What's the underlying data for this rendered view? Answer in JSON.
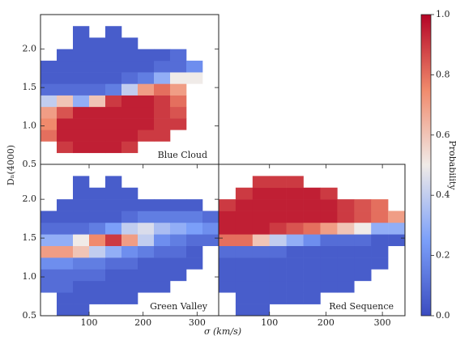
{
  "chart_data": [
    {
      "type": "heatmap",
      "annotation": "Blue Cloud",
      "xlim": [
        10,
        340
      ],
      "ylim": [
        0.5,
        2.45
      ],
      "xbins": [
        10,
        40,
        70,
        100,
        130,
        160,
        190,
        220,
        250,
        280,
        310,
        340
      ],
      "ybins": [
        0.5,
        0.65,
        0.8,
        0.95,
        1.1,
        1.25,
        1.4,
        1.55,
        1.7,
        1.85,
        2.0,
        2.15,
        2.3,
        2.45
      ],
      "yticks": [
        0.5,
        {
          "value": 1.0,
          "label": "1.0"
        },
        1.5,
        {
          "value": 2.0,
          "label": "2.0"
        }
      ],
      "z": [
        [
          null,
          null,
          null,
          null,
          null,
          null,
          null,
          null,
          null,
          null,
          null
        ],
        [
          null,
          0.9,
          0.95,
          0.95,
          0.95,
          0.9,
          null,
          null,
          null,
          null,
          null
        ],
        [
          0.8,
          0.95,
          0.95,
          0.95,
          0.95,
          0.95,
          0.9,
          0.9,
          null,
          null,
          null
        ],
        [
          0.75,
          0.95,
          0.95,
          0.95,
          0.95,
          0.95,
          0.95,
          0.9,
          0.9,
          null,
          null
        ],
        [
          0.7,
          0.85,
          0.95,
          0.95,
          0.95,
          0.95,
          0.95,
          0.9,
          0.85,
          null,
          null
        ],
        [
          0.4,
          0.6,
          0.3,
          0.6,
          0.9,
          0.95,
          0.95,
          0.9,
          0.8,
          null,
          null
        ],
        [
          0.1,
          0.1,
          0.1,
          0.1,
          0.15,
          0.4,
          0.7,
          0.8,
          0.7,
          null,
          null
        ],
        [
          0.05,
          0.05,
          0.05,
          0.05,
          0.05,
          0.1,
          0.15,
          0.3,
          0.5,
          0.5,
          null
        ],
        [
          0.05,
          0.05,
          0.05,
          0.05,
          0.05,
          0.05,
          0.05,
          0.1,
          0.1,
          0.2,
          null
        ],
        [
          null,
          0.05,
          0.05,
          0.05,
          0.05,
          0.05,
          0.05,
          0.05,
          0.1,
          null,
          null
        ],
        [
          null,
          null,
          0.05,
          0.05,
          0.05,
          0.05,
          null,
          null,
          null,
          null,
          null
        ],
        [
          null,
          null,
          0.05,
          null,
          0.05,
          null,
          null,
          null,
          null,
          null,
          null
        ],
        [
          null,
          null,
          null,
          null,
          null,
          null,
          null,
          null,
          null,
          null,
          null
        ]
      ]
    },
    {
      "type": "heatmap",
      "annotation": "Green Valley",
      "xlim": [
        10,
        340
      ],
      "ylim": [
        0.5,
        2.45
      ],
      "xbins": [
        10,
        40,
        70,
        100,
        130,
        160,
        190,
        220,
        250,
        280,
        310,
        340
      ],
      "ybins": [
        0.5,
        0.65,
        0.8,
        0.95,
        1.1,
        1.25,
        1.4,
        1.55,
        1.7,
        1.85,
        2.0,
        2.15,
        2.3,
        2.45
      ],
      "xticks": [
        100,
        200,
        300
      ],
      "yticks": [
        0.5,
        {
          "value": 1.0,
          "label": "1.0"
        },
        1.5,
        {
          "value": 2.0,
          "label": "2.0"
        }
      ],
      "z": [
        [
          null,
          0.05,
          0.05,
          null,
          null,
          null,
          null,
          null,
          null,
          null,
          null
        ],
        [
          null,
          0.05,
          0.05,
          0.05,
          0.05,
          0.05,
          null,
          null,
          null,
          null,
          null
        ],
        [
          0.1,
          0.1,
          0.05,
          0.05,
          0.05,
          0.05,
          0.05,
          0.05,
          null,
          null,
          null
        ],
        [
          0.1,
          0.1,
          0.1,
          0.1,
          0.05,
          0.05,
          0.05,
          0.05,
          0.05,
          null,
          null
        ],
        [
          0.2,
          0.2,
          0.15,
          0.15,
          0.1,
          0.1,
          0.05,
          0.05,
          0.05,
          0.05,
          null
        ],
        [
          0.7,
          0.7,
          0.6,
          0.4,
          0.3,
          0.2,
          0.15,
          0.1,
          0.1,
          0.05,
          null
        ],
        [
          0.3,
          0.3,
          0.5,
          0.75,
          0.9,
          0.7,
          0.4,
          0.2,
          0.15,
          0.1,
          0.1
        ],
        [
          0.1,
          0.1,
          0.1,
          0.15,
          0.25,
          0.4,
          0.45,
          0.35,
          0.3,
          0.25,
          0.2
        ],
        [
          0.05,
          0.05,
          0.05,
          0.05,
          0.05,
          0.1,
          0.15,
          0.15,
          0.15,
          0.15,
          0.1
        ],
        [
          null,
          0.05,
          0.05,
          0.05,
          0.05,
          0.05,
          0.05,
          0.05,
          0.05,
          0.05,
          null
        ],
        [
          null,
          null,
          0.05,
          0.05,
          0.05,
          0.05,
          null,
          null,
          null,
          null,
          null
        ],
        [
          null,
          null,
          0.05,
          null,
          0.05,
          null,
          null,
          null,
          null,
          null,
          null
        ],
        [
          null,
          null,
          null,
          null,
          null,
          null,
          null,
          null,
          null,
          null,
          null
        ]
      ]
    },
    {
      "type": "heatmap",
      "annotation": "Red Sequence",
      "xlim": [
        10,
        340
      ],
      "ylim": [
        0.5,
        2.45
      ],
      "xbins": [
        10,
        40,
        70,
        100,
        130,
        160,
        190,
        220,
        250,
        280,
        310,
        340
      ],
      "ybins": [
        0.5,
        0.65,
        0.8,
        0.95,
        1.1,
        1.25,
        1.4,
        1.55,
        1.7,
        1.85,
        2.0,
        2.15,
        2.3,
        2.45
      ],
      "xticks": [
        100,
        200,
        300
      ],
      "yticks": [
        0.5,
        1.5
      ],
      "z": [
        [
          null,
          0.05,
          0.05,
          null,
          null,
          null,
          null,
          null,
          null,
          null,
          null
        ],
        [
          null,
          0.05,
          0.05,
          0.05,
          0.05,
          0.05,
          null,
          null,
          null,
          null,
          null
        ],
        [
          0.05,
          0.05,
          0.05,
          0.05,
          0.05,
          0.05,
          0.05,
          0.05,
          null,
          null,
          null
        ],
        [
          0.05,
          0.05,
          0.05,
          0.05,
          0.05,
          0.05,
          0.05,
          0.05,
          0.05,
          null,
          null
        ],
        [
          0.05,
          0.05,
          0.05,
          0.05,
          0.05,
          0.05,
          0.05,
          0.05,
          0.05,
          0.05,
          null
        ],
        [
          0.1,
          0.1,
          0.1,
          0.1,
          0.05,
          0.05,
          0.05,
          0.05,
          0.05,
          0.05,
          null
        ],
        [
          0.8,
          0.8,
          0.6,
          0.4,
          0.3,
          0.2,
          0.1,
          0.1,
          0.1,
          0.05,
          0.05
        ],
        [
          0.95,
          0.95,
          0.95,
          0.9,
          0.85,
          0.8,
          0.7,
          0.6,
          0.5,
          0.3,
          0.3
        ],
        [
          0.95,
          0.95,
          0.95,
          0.95,
          0.95,
          0.95,
          0.95,
          0.9,
          0.85,
          0.8,
          0.7
        ],
        [
          0.9,
          0.95,
          0.95,
          0.95,
          0.95,
          0.95,
          0.95,
          0.9,
          0.85,
          0.8,
          null
        ],
        [
          null,
          0.9,
          0.95,
          0.95,
          0.95,
          0.95,
          0.9,
          null,
          null,
          null,
          null
        ],
        [
          null,
          null,
          0.9,
          0.9,
          0.9,
          null,
          null,
          null,
          null,
          null,
          null
        ],
        [
          null,
          null,
          null,
          null,
          null,
          null,
          null,
          null,
          null,
          null,
          null
        ]
      ]
    }
  ],
  "xlabel": "σ (km/s)",
  "ylabel": "Dₙ(4000)",
  "colorbar": {
    "label": "Probability",
    "lim": [
      0,
      1
    ],
    "colors": [
      "#3b4cc0",
      "#7b9ff9",
      "#f0ebe8",
      "#f08a6c",
      "#b40426"
    ],
    "ticks": [
      {
        "value": 0,
        "label": "0.0"
      },
      0.2,
      0.4,
      0.6,
      0.8,
      {
        "value": 1,
        "label": "1.0"
      }
    ]
  }
}
